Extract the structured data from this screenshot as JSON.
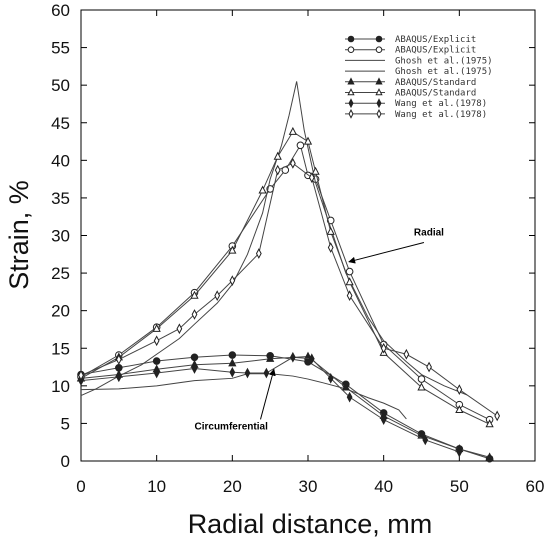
{
  "chart_data": {
    "type": "line",
    "title": "",
    "xlabel": "Radial distance, mm",
    "ylabel": "Strain, %",
    "xlim": [
      0,
      60
    ],
    "ylim": [
      0,
      60
    ],
    "xticks": [
      0,
      10,
      20,
      30,
      40,
      50,
      60
    ],
    "yticks": [
      0,
      5,
      10,
      15,
      20,
      25,
      30,
      35,
      40,
      45,
      50,
      55,
      60
    ],
    "grid": false,
    "legend_position": "top-right",
    "annotations": [
      {
        "text": "Radial",
        "arrow_to": [
          35.4,
          26.5
        ],
        "label_at": [
          44,
          30
        ]
      },
      {
        "text": "Circumferential",
        "arrow_to": [
          25.5,
          12.2
        ],
        "label_at": [
          15,
          4.2
        ]
      }
    ],
    "series": [
      {
        "name": "ABAQUS/Explicit",
        "marker": "filled-circle",
        "x": [
          0,
          5,
          10,
          15,
          20,
          25,
          30,
          35,
          40,
          45,
          50,
          54
        ],
        "y": [
          11.5,
          12.4,
          13.3,
          13.8,
          14.1,
          14.0,
          13.2,
          10.2,
          6.4,
          3.6,
          1.6,
          0.3
        ]
      },
      {
        "name": "ABAQUS/Explicit",
        "marker": "open-circle",
        "x": [
          0,
          5,
          10,
          15,
          20,
          25,
          27,
          29,
          30,
          31,
          33,
          35.5,
          40,
          45,
          50,
          54
        ],
        "y": [
          11.2,
          14.1,
          17.8,
          22.4,
          28.6,
          36.2,
          38.7,
          42.0,
          38.0,
          37.5,
          32.0,
          25.2,
          15.5,
          10.9,
          7.5,
          5.5
        ]
      },
      {
        "name": "Ghosh et al.(1975)",
        "marker": "none",
        "x": [
          0,
          2,
          5,
          8,
          10,
          13,
          15,
          18,
          20,
          22,
          24,
          25,
          26.5,
          27.5,
          28.5,
          29.5,
          31,
          33,
          35,
          38,
          40,
          43,
          45,
          48,
          51
        ],
        "y": [
          8.7,
          9.6,
          11.3,
          12.8,
          14.2,
          16.3,
          18.2,
          21.0,
          23.5,
          27.5,
          33.0,
          37.5,
          42.0,
          46.0,
          50.5,
          44.0,
          37.0,
          31.0,
          25.0,
          19.0,
          16.0,
          13.2,
          11.5,
          10.0,
          8.8
        ]
      },
      {
        "name": "Ghosh et al.(1975)",
        "marker": "none",
        "x": [
          0,
          5,
          10,
          15,
          20,
          22,
          25,
          28,
          30,
          32,
          35,
          38,
          40,
          42,
          43
        ],
        "y": [
          9.5,
          9.6,
          10.0,
          10.7,
          11.0,
          11.6,
          11.6,
          11.3,
          10.9,
          10.4,
          9.6,
          8.4,
          7.7,
          6.8,
          5.6
        ]
      },
      {
        "name": "ABAQUS/Standard",
        "marker": "filled-triangle",
        "x": [
          0,
          5,
          10,
          15,
          20,
          25,
          30,
          35,
          40,
          45,
          50,
          54
        ],
        "y": [
          11.0,
          11.5,
          12.2,
          12.8,
          13.0,
          13.6,
          13.9,
          9.8,
          6.0,
          3.4,
          1.6,
          0.5
        ]
      },
      {
        "name": "ABAQUS/Standard",
        "marker": "open-triangle",
        "x": [
          0,
          5,
          10,
          15,
          20,
          24,
          26,
          28,
          30,
          31,
          33,
          35.5,
          40,
          45,
          50,
          54
        ],
        "y": [
          11.0,
          13.8,
          17.6,
          22.0,
          28.0,
          36.0,
          40.5,
          43.8,
          42.5,
          38.5,
          30.5,
          23.8,
          14.4,
          9.8,
          6.8,
          4.9
        ]
      },
      {
        "name": "Wang et al.(1978)",
        "marker": "filled-diamond",
        "x": [
          0,
          5,
          10,
          15,
          20,
          22,
          24.5,
          28,
          30.5,
          33,
          35.5,
          40,
          45.5,
          50
        ],
        "y": [
          10.7,
          11.2,
          11.7,
          12.3,
          11.8,
          11.7,
          11.7,
          13.8,
          13.6,
          11.0,
          8.5,
          5.5,
          2.8,
          1.2
        ]
      },
      {
        "name": "Wang et al.(1978)",
        "marker": "open-diamond",
        "x": [
          0,
          5,
          10,
          13,
          15,
          18,
          20,
          23.5,
          26,
          28,
          30.5,
          33,
          35.5,
          40,
          43,
          46,
          50,
          55
        ],
        "y": [
          11.4,
          13.5,
          16.0,
          17.6,
          19.5,
          22.0,
          24.0,
          27.6,
          38.7,
          39.6,
          37.7,
          28.4,
          22.0,
          15.0,
          14.2,
          12.5,
          9.5,
          6.0
        ]
      }
    ]
  }
}
